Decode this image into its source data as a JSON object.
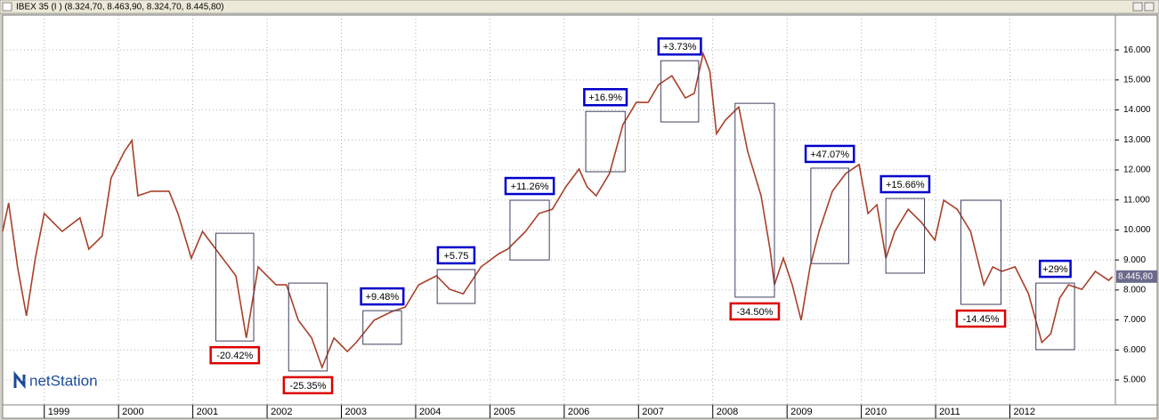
{
  "window_title": "IBEX 35 (I ) (8.324,70, 8.463,90, 8.324,70, 8.445,80)",
  "logo": "netStation",
  "chart_data": {
    "type": "line",
    "x": [
      1998.44,
      1998.52,
      1998.64,
      1998.76,
      1998.88,
      1999.0,
      1999.24,
      1999.48,
      1999.6,
      1999.78,
      1999.9,
      2000.08,
      2000.18,
      2000.26,
      2000.44,
      2000.68,
      2000.8,
      2000.98,
      2001.13,
      2001.4,
      2001.58,
      2001.72,
      2001.88,
      2002.12,
      2002.26,
      2002.42,
      2002.6,
      2002.74,
      2002.9,
      2003.08,
      2003.2,
      2003.44,
      2003.68,
      2003.86,
      2004.04,
      2004.28,
      2004.46,
      2004.64,
      2004.88,
      2005.12,
      2005.24,
      2005.48,
      2005.66,
      2005.84,
      2006.02,
      2006.2,
      2006.31,
      2006.43,
      2006.61,
      2006.79,
      2006.97,
      2007.13,
      2007.27,
      2007.45,
      2007.63,
      2007.75,
      2007.87,
      2007.96,
      2008.05,
      2008.17,
      2008.35,
      2008.47,
      2008.65,
      2008.77,
      2008.83,
      2008.95,
      2009.07,
      2009.19,
      2009.31,
      2009.43,
      2009.61,
      2009.79,
      2009.97,
      2010.09,
      2010.21,
      2010.33,
      2010.45,
      2010.63,
      2010.81,
      2010.99,
      2011.11,
      2011.29,
      2011.47,
      2011.65,
      2011.77,
      2011.89,
      2012.07,
      2012.25,
      2012.43,
      2012.55,
      2012.67,
      2012.79,
      2012.97,
      2013.15,
      2013.33,
      2013.38
    ],
    "series": [
      {
        "color": "#a8402a",
        "values": [
          9950,
          10900,
          8770,
          7140,
          9060,
          10550,
          9950,
          10400,
          9360,
          9800,
          11730,
          12620,
          12980,
          11140,
          11290,
          11290,
          10550,
          9060,
          9950,
          9060,
          8470,
          6400,
          8770,
          8170,
          8170,
          6990,
          6400,
          5420,
          6400,
          5950,
          6250,
          6990,
          7280,
          7430,
          8170,
          8470,
          8020,
          7870,
          8770,
          9210,
          9360,
          9950,
          10550,
          10690,
          11430,
          12030,
          11430,
          11140,
          11880,
          13510,
          14250,
          14250,
          14840,
          15140,
          14400,
          14550,
          15880,
          15290,
          13210,
          13660,
          14100,
          12620,
          11140,
          9360,
          8170,
          9060,
          8170,
          6990,
          8770,
          9950,
          11290,
          11880,
          12180,
          10550,
          10840,
          9060,
          9950,
          10690,
          10250,
          9660,
          10990,
          10690,
          9950,
          8170,
          8770,
          8620,
          8770,
          7870,
          6250,
          6540,
          7730,
          8170,
          8020,
          8620,
          8320,
          8445.8
        ]
      }
    ],
    "xlim": [
      1998.44,
      2013.42
    ],
    "ylim": [
      4170,
      17160
    ],
    "xticks": [
      1999,
      2000,
      2001,
      2002,
      2003,
      2004,
      2005,
      2006,
      2007,
      2008,
      2009,
      2010,
      2011,
      2012
    ],
    "yticks": [
      {
        "value": 5000,
        "label": "5.000"
      },
      {
        "value": 6000,
        "label": "6.000"
      },
      {
        "value": 7000,
        "label": "7.000"
      },
      {
        "value": 8000,
        "label": "8.000"
      },
      {
        "value": 9000,
        "label": "9.000"
      },
      {
        "value": 10000,
        "label": "10.000"
      },
      {
        "value": 11000,
        "label": "11.000"
      },
      {
        "value": 12000,
        "label": "12.000"
      },
      {
        "value": 13000,
        "label": "13.000"
      },
      {
        "value": 14000,
        "label": "14.000"
      },
      {
        "value": 15000,
        "label": "15.000"
      },
      {
        "value": 16000,
        "label": "16.000"
      }
    ],
    "grid": true,
    "last_value": {
      "value": 8445.8,
      "label": "8.445,80"
    },
    "annotations": [
      {
        "label": "-20.42%",
        "color": "#dd0000",
        "x": [
          2001.31,
          2001.82
        ],
        "y": [
          9890,
          6300
        ]
      },
      {
        "label": "-25.35%",
        "color": "#dd0000",
        "x": [
          2002.29,
          2002.81
        ],
        "y": [
          8230,
          5300
        ]
      },
      {
        "label": "+9.48%",
        "color": "#0000cc",
        "x": [
          2003.29,
          2003.81
        ],
        "y": [
          7310,
          6190
        ]
      },
      {
        "label": "+5.75",
        "color": "#0000cc",
        "x": [
          2004.29,
          2004.8
        ],
        "y": [
          8680,
          7550
        ]
      },
      {
        "label": "+11.26%",
        "color": "#0000cc",
        "x": [
          2005.27,
          2005.8
        ],
        "y": [
          10990,
          9000
        ]
      },
      {
        "label": "+16.9%",
        "color": "#0000cc",
        "x": [
          2006.29,
          2006.82
        ],
        "y": [
          13950,
          11940
        ]
      },
      {
        "label": "+3.73%",
        "color": "#0000cc",
        "x": [
          2007.3,
          2007.81
        ],
        "y": [
          15640,
          13600
        ]
      },
      {
        "label": "-34.50%",
        "color": "#dd0000",
        "x": [
          2008.3,
          2008.83
        ],
        "y": [
          14220,
          7760
        ]
      },
      {
        "label": "+47.07%",
        "color": "#0000cc",
        "x": [
          2009.32,
          2009.83
        ],
        "y": [
          12060,
          8880
        ]
      },
      {
        "label": "+15.66%",
        "color": "#0000cc",
        "x": [
          2010.33,
          2010.85
        ],
        "y": [
          11050,
          8560
        ]
      },
      {
        "label": "-14.45%",
        "color": "#dd0000",
        "x": [
          2011.34,
          2011.88
        ],
        "y": [
          10990,
          7520
        ]
      },
      {
        "label": "+29%",
        "color": "#0000cc",
        "x": [
          2012.35,
          2012.87
        ],
        "y": [
          8230,
          6010
        ]
      }
    ]
  }
}
